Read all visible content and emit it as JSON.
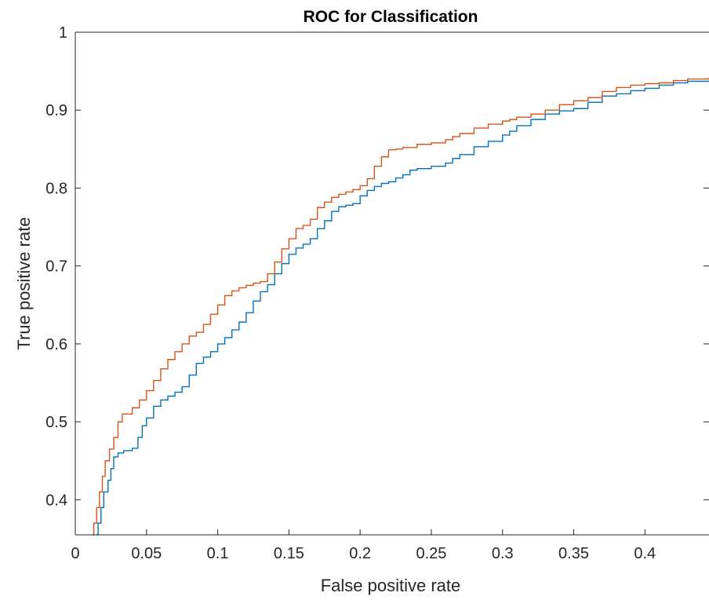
{
  "chart_data": {
    "type": "line",
    "title": "ROC for Classification",
    "xlabel": "False positive rate",
    "ylabel": "True positive rate",
    "xlim": [
      0,
      0.445
    ],
    "ylim": [
      0.355,
      1.0
    ],
    "x_ticks": [
      0,
      0.05,
      0.1,
      0.15,
      0.2,
      0.25,
      0.3,
      0.35,
      0.4
    ],
    "x_tick_labels": [
      "0",
      "0.05",
      "0.1",
      "0.15",
      "0.2",
      "0.25",
      "0.3",
      "0.35",
      "0.4"
    ],
    "y_ticks": [
      0.4,
      0.5,
      0.6,
      0.7,
      0.8,
      0.9,
      1.0
    ],
    "y_tick_labels": [
      "0.4",
      "0.5",
      "0.6",
      "0.7",
      "0.8",
      "0.9",
      "1"
    ],
    "grid": false,
    "legend": "none",
    "step": true,
    "series": [
      {
        "color": "#0072BD",
        "points": [
          [
            0.015,
            0.355
          ],
          [
            0.016,
            0.37
          ],
          [
            0.018,
            0.39
          ],
          [
            0.02,
            0.41
          ],
          [
            0.023,
            0.425
          ],
          [
            0.025,
            0.44
          ],
          [
            0.027,
            0.455
          ],
          [
            0.03,
            0.46
          ],
          [
            0.034,
            0.463
          ],
          [
            0.04,
            0.466
          ],
          [
            0.044,
            0.48
          ],
          [
            0.047,
            0.495
          ],
          [
            0.05,
            0.505
          ],
          [
            0.055,
            0.52
          ],
          [
            0.06,
            0.528
          ],
          [
            0.065,
            0.533
          ],
          [
            0.07,
            0.538
          ],
          [
            0.075,
            0.545
          ],
          [
            0.08,
            0.56
          ],
          [
            0.085,
            0.575
          ],
          [
            0.09,
            0.583
          ],
          [
            0.095,
            0.59
          ],
          [
            0.1,
            0.6
          ],
          [
            0.105,
            0.608
          ],
          [
            0.11,
            0.618
          ],
          [
            0.115,
            0.628
          ],
          [
            0.12,
            0.64
          ],
          [
            0.125,
            0.655
          ],
          [
            0.13,
            0.667
          ],
          [
            0.135,
            0.676
          ],
          [
            0.14,
            0.69
          ],
          [
            0.145,
            0.703
          ],
          [
            0.15,
            0.715
          ],
          [
            0.155,
            0.723
          ],
          [
            0.16,
            0.728
          ],
          [
            0.165,
            0.735
          ],
          [
            0.17,
            0.748
          ],
          [
            0.175,
            0.758
          ],
          [
            0.18,
            0.77
          ],
          [
            0.185,
            0.776
          ],
          [
            0.19,
            0.778
          ],
          [
            0.195,
            0.78
          ],
          [
            0.2,
            0.79
          ],
          [
            0.205,
            0.797
          ],
          [
            0.21,
            0.802
          ],
          [
            0.215,
            0.806
          ],
          [
            0.22,
            0.808
          ],
          [
            0.225,
            0.813
          ],
          [
            0.23,
            0.817
          ],
          [
            0.235,
            0.823
          ],
          [
            0.24,
            0.825
          ],
          [
            0.25,
            0.828
          ],
          [
            0.26,
            0.832
          ],
          [
            0.265,
            0.838
          ],
          [
            0.27,
            0.843
          ],
          [
            0.28,
            0.853
          ],
          [
            0.29,
            0.86
          ],
          [
            0.3,
            0.868
          ],
          [
            0.305,
            0.873
          ],
          [
            0.31,
            0.88
          ],
          [
            0.32,
            0.888
          ],
          [
            0.33,
            0.895
          ],
          [
            0.34,
            0.899
          ],
          [
            0.35,
            0.902
          ],
          [
            0.36,
            0.91
          ],
          [
            0.37,
            0.918
          ],
          [
            0.38,
            0.921
          ],
          [
            0.39,
            0.925
          ],
          [
            0.4,
            0.928
          ],
          [
            0.41,
            0.932
          ],
          [
            0.42,
            0.935
          ],
          [
            0.43,
            0.937
          ],
          [
            0.445,
            0.938
          ]
        ]
      },
      {
        "color": "#D95319",
        "points": [
          [
            0.012,
            0.355
          ],
          [
            0.013,
            0.37
          ],
          [
            0.015,
            0.39
          ],
          [
            0.017,
            0.41
          ],
          [
            0.019,
            0.43
          ],
          [
            0.021,
            0.45
          ],
          [
            0.024,
            0.465
          ],
          [
            0.027,
            0.48
          ],
          [
            0.03,
            0.5
          ],
          [
            0.033,
            0.51
          ],
          [
            0.04,
            0.518
          ],
          [
            0.045,
            0.528
          ],
          [
            0.05,
            0.54
          ],
          [
            0.055,
            0.553
          ],
          [
            0.06,
            0.568
          ],
          [
            0.065,
            0.58
          ],
          [
            0.07,
            0.59
          ],
          [
            0.075,
            0.6
          ],
          [
            0.08,
            0.61
          ],
          [
            0.085,
            0.615
          ],
          [
            0.09,
            0.625
          ],
          [
            0.095,
            0.638
          ],
          [
            0.1,
            0.65
          ],
          [
            0.105,
            0.662
          ],
          [
            0.11,
            0.668
          ],
          [
            0.115,
            0.672
          ],
          [
            0.12,
            0.675
          ],
          [
            0.125,
            0.678
          ],
          [
            0.13,
            0.68
          ],
          [
            0.135,
            0.69
          ],
          [
            0.14,
            0.705
          ],
          [
            0.145,
            0.722
          ],
          [
            0.15,
            0.735
          ],
          [
            0.155,
            0.748
          ],
          [
            0.16,
            0.752
          ],
          [
            0.165,
            0.76
          ],
          [
            0.17,
            0.775
          ],
          [
            0.175,
            0.782
          ],
          [
            0.18,
            0.788
          ],
          [
            0.185,
            0.792
          ],
          [
            0.19,
            0.795
          ],
          [
            0.195,
            0.798
          ],
          [
            0.2,
            0.803
          ],
          [
            0.205,
            0.812
          ],
          [
            0.21,
            0.828
          ],
          [
            0.215,
            0.84
          ],
          [
            0.22,
            0.849
          ],
          [
            0.225,
            0.85
          ],
          [
            0.23,
            0.852
          ],
          [
            0.24,
            0.856
          ],
          [
            0.25,
            0.858
          ],
          [
            0.26,
            0.862
          ],
          [
            0.265,
            0.866
          ],
          [
            0.27,
            0.87
          ],
          [
            0.28,
            0.877
          ],
          [
            0.29,
            0.882
          ],
          [
            0.3,
            0.886
          ],
          [
            0.305,
            0.888
          ],
          [
            0.31,
            0.891
          ],
          [
            0.32,
            0.895
          ],
          [
            0.33,
            0.9
          ],
          [
            0.34,
            0.907
          ],
          [
            0.35,
            0.912
          ],
          [
            0.36,
            0.916
          ],
          [
            0.37,
            0.924
          ],
          [
            0.38,
            0.929
          ],
          [
            0.39,
            0.932
          ],
          [
            0.4,
            0.934
          ],
          [
            0.41,
            0.935
          ],
          [
            0.42,
            0.938
          ],
          [
            0.43,
            0.94
          ],
          [
            0.445,
            0.942
          ]
        ]
      }
    ]
  }
}
